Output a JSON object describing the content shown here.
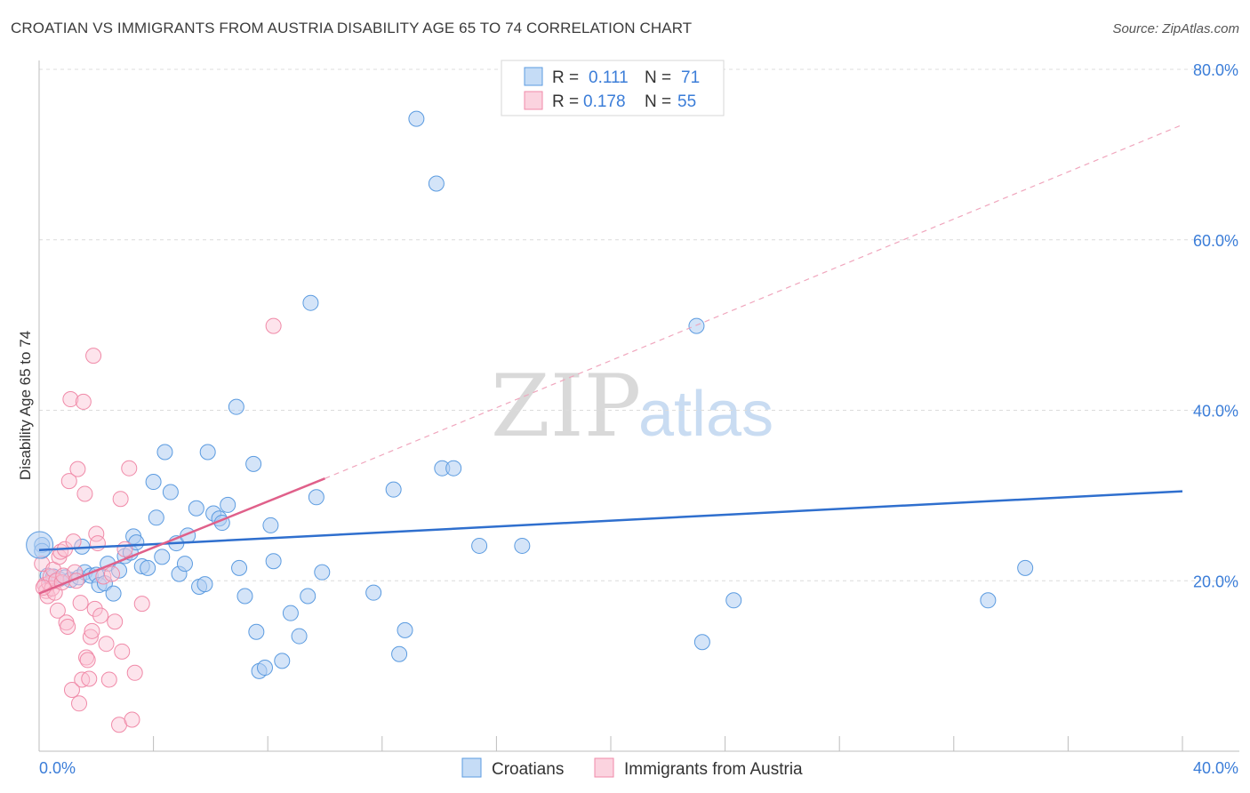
{
  "title": "CROATIAN VS IMMIGRANTS FROM AUSTRIA DISABILITY AGE 65 TO 74 CORRELATION CHART",
  "source": "Source: ZipAtlas.com",
  "watermark": {
    "part1": "ZIP",
    "part2": "atlas"
  },
  "legend_top": {
    "rows": [
      {
        "r_label": "R =",
        "r_value": "0.111",
        "n_label": "N =",
        "n_value": "71"
      },
      {
        "r_label": "R =",
        "r_value": "0.178",
        "n_label": "N =",
        "n_value": "55"
      }
    ]
  },
  "chart_data": {
    "type": "scatter",
    "title": "CROATIAN VS IMMIGRANTS FROM AUSTRIA DISABILITY AGE 65 TO 74 CORRELATION CHART",
    "xlabel": "",
    "ylabel": "Disability Age 65 to 74",
    "xlim": [
      0,
      40
    ],
    "ylim": [
      0,
      80
    ],
    "x_tick_labels": [
      "0.0%",
      "40.0%"
    ],
    "y_tick_labels": [
      "20.0%",
      "40.0%",
      "60.0%",
      "80.0%"
    ],
    "y_ticks": [
      20,
      40,
      60,
      80
    ],
    "colors": {
      "croatians": "#5b9be0",
      "austria": "#f08aa8",
      "croatians_line": "#2f6fce",
      "austria_line": "#e0608a"
    },
    "series": [
      {
        "name": "Croatians",
        "r": 0.111,
        "n": 71,
        "trend": {
          "x0": 0,
          "y0": 23.6,
          "x1": 40,
          "y1": 30.5
        },
        "points": [
          [
            0.1,
            24.2
          ],
          [
            0.3,
            20.6
          ],
          [
            0.5,
            20.5
          ],
          [
            0.7,
            20.2
          ],
          [
            0.9,
            20.4
          ],
          [
            1.1,
            20.1
          ],
          [
            1.4,
            20.4
          ],
          [
            1.5,
            24.0
          ],
          [
            1.6,
            21.0
          ],
          [
            1.8,
            20.6
          ],
          [
            2.0,
            20.7
          ],
          [
            2.1,
            19.5
          ],
          [
            2.3,
            19.7
          ],
          [
            2.4,
            22.0
          ],
          [
            2.6,
            18.5
          ],
          [
            2.8,
            21.2
          ],
          [
            3.0,
            22.9
          ],
          [
            3.2,
            23.3
          ],
          [
            3.3,
            25.2
          ],
          [
            3.4,
            24.5
          ],
          [
            3.6,
            21.7
          ],
          [
            3.8,
            21.5
          ],
          [
            4.0,
            31.6
          ],
          [
            4.1,
            27.4
          ],
          [
            4.3,
            22.8
          ],
          [
            4.4,
            35.1
          ],
          [
            4.6,
            30.4
          ],
          [
            4.8,
            24.4
          ],
          [
            4.9,
            20.8
          ],
          [
            5.1,
            22.0
          ],
          [
            5.2,
            25.3
          ],
          [
            5.5,
            28.5
          ],
          [
            5.6,
            19.3
          ],
          [
            5.8,
            19.6
          ],
          [
            5.9,
            35.1
          ],
          [
            6.1,
            27.9
          ],
          [
            6.3,
            27.3
          ],
          [
            6.4,
            26.8
          ],
          [
            6.6,
            28.9
          ],
          [
            6.9,
            40.4
          ],
          [
            7.0,
            21.5
          ],
          [
            7.2,
            18.2
          ],
          [
            7.5,
            33.7
          ],
          [
            7.6,
            14.0
          ],
          [
            7.7,
            9.4
          ],
          [
            7.9,
            9.8
          ],
          [
            8.1,
            26.5
          ],
          [
            8.2,
            22.3
          ],
          [
            8.5,
            10.6
          ],
          [
            8.8,
            16.2
          ],
          [
            9.1,
            13.5
          ],
          [
            9.4,
            18.2
          ],
          [
            9.5,
            52.6
          ],
          [
            9.7,
            29.8
          ],
          [
            9.9,
            21.0
          ],
          [
            11.7,
            18.6
          ],
          [
            12.4,
            30.7
          ],
          [
            12.6,
            11.4
          ],
          [
            12.8,
            14.2
          ],
          [
            13.2,
            74.2
          ],
          [
            13.9,
            66.6
          ],
          [
            14.1,
            33.2
          ],
          [
            14.5,
            33.2
          ],
          [
            15.4,
            24.1
          ],
          [
            16.9,
            24.1
          ],
          [
            23.0,
            49.9
          ],
          [
            23.2,
            12.8
          ],
          [
            24.3,
            17.7
          ],
          [
            33.2,
            17.7
          ],
          [
            34.5,
            21.5
          ],
          [
            0.1,
            23.5
          ]
        ]
      },
      {
        "name": "Immigrants from Austria",
        "r": 0.178,
        "n": 55,
        "trend": {
          "x0": 0,
          "y0": 18.5,
          "x1": 10,
          "y1": 32.0,
          "dashed_to_x": 40,
          "dashed_to_y": 73.5
        },
        "points": [
          [
            0.1,
            22.0
          ],
          [
            0.2,
            19.5
          ],
          [
            0.25,
            18.8
          ],
          [
            0.3,
            18.2
          ],
          [
            0.35,
            19.7
          ],
          [
            0.4,
            20.5
          ],
          [
            0.45,
            19.1
          ],
          [
            0.5,
            21.3
          ],
          [
            0.55,
            18.6
          ],
          [
            0.6,
            20.0
          ],
          [
            0.65,
            16.5
          ],
          [
            0.7,
            22.8
          ],
          [
            0.75,
            23.4
          ],
          [
            0.8,
            19.8
          ],
          [
            0.85,
            20.6
          ],
          [
            0.9,
            23.7
          ],
          [
            0.95,
            15.1
          ],
          [
            1.0,
            14.6
          ],
          [
            1.05,
            31.7
          ],
          [
            1.1,
            41.3
          ],
          [
            1.15,
            7.2
          ],
          [
            1.2,
            24.6
          ],
          [
            1.25,
            21.0
          ],
          [
            1.3,
            20.0
          ],
          [
            1.35,
            33.1
          ],
          [
            1.4,
            5.6
          ],
          [
            1.45,
            17.4
          ],
          [
            1.5,
            8.4
          ],
          [
            1.55,
            41.0
          ],
          [
            1.6,
            30.2
          ],
          [
            1.65,
            11.0
          ],
          [
            1.7,
            10.7
          ],
          [
            1.75,
            8.5
          ],
          [
            1.8,
            13.4
          ],
          [
            1.85,
            14.1
          ],
          [
            1.9,
            46.4
          ],
          [
            1.95,
            16.7
          ],
          [
            2.0,
            25.5
          ],
          [
            2.05,
            24.4
          ],
          [
            2.15,
            15.9
          ],
          [
            2.25,
            20.5
          ],
          [
            2.35,
            12.6
          ],
          [
            2.45,
            8.4
          ],
          [
            2.55,
            20.8
          ],
          [
            2.65,
            15.2
          ],
          [
            2.8,
            3.1
          ],
          [
            2.85,
            29.6
          ],
          [
            2.9,
            11.7
          ],
          [
            3.0,
            23.7
          ],
          [
            3.15,
            33.2
          ],
          [
            3.25,
            3.7
          ],
          [
            3.35,
            9.2
          ],
          [
            3.6,
            17.3
          ],
          [
            8.2,
            49.9
          ],
          [
            0.15,
            19.2
          ]
        ]
      }
    ]
  },
  "legend_bottom": {
    "items": [
      "Croatians",
      "Immigrants from Austria"
    ]
  }
}
